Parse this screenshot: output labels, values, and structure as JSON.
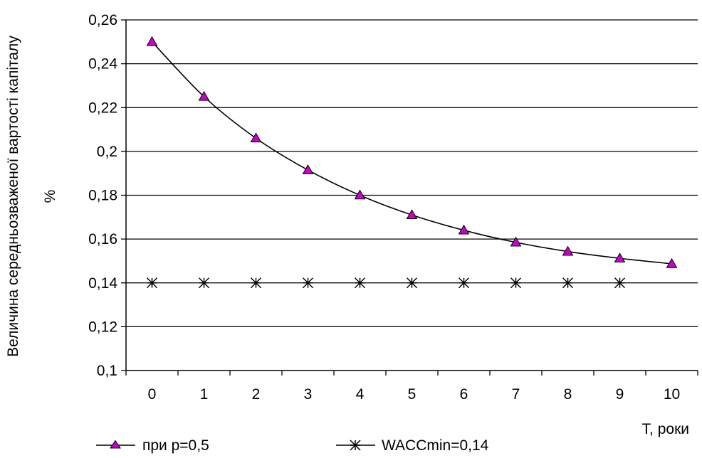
{
  "chart_data": {
    "type": "line",
    "categories": [
      "0",
      "1",
      "2",
      "3",
      "4",
      "5",
      "6",
      "7",
      "8",
      "9",
      "10"
    ],
    "series": [
      {
        "name": "при p=0,5",
        "values": [
          0.25,
          0.225,
          0.206,
          0.1915,
          0.18,
          0.171,
          0.164,
          0.1585,
          0.1543,
          0.1512,
          0.1487
        ],
        "marker": "triangle",
        "marker_color": "#CC00CC",
        "line_color": "#000000",
        "line": true
      },
      {
        "name": "WACCmin=0,14",
        "values": [
          0.14,
          0.14,
          0.14,
          0.14,
          0.14,
          0.14,
          0.14,
          0.14,
          0.14,
          0.14,
          null
        ],
        "marker": "asterisk",
        "marker_color": "#000000",
        "line": false
      }
    ],
    "ylabel": "Величина середньозваженої вартості капіталу %",
    "ylabel_lines": [
      "Величина середньозваженої вартості капіталу",
      "%"
    ],
    "xlabel": "T, роки",
    "ylim": [
      0.1,
      0.26
    ],
    "yticks": [
      0.1,
      0.12,
      0.14,
      0.16,
      0.18,
      0.2,
      0.22,
      0.24,
      0.26
    ],
    "ytick_labels": [
      "0,1",
      "0,12",
      "0,14",
      "0,16",
      "0,18",
      "0,2",
      "0,22",
      "0,24",
      "0,26"
    ],
    "grid": "horizontal",
    "legend_position": "bottom-left"
  }
}
